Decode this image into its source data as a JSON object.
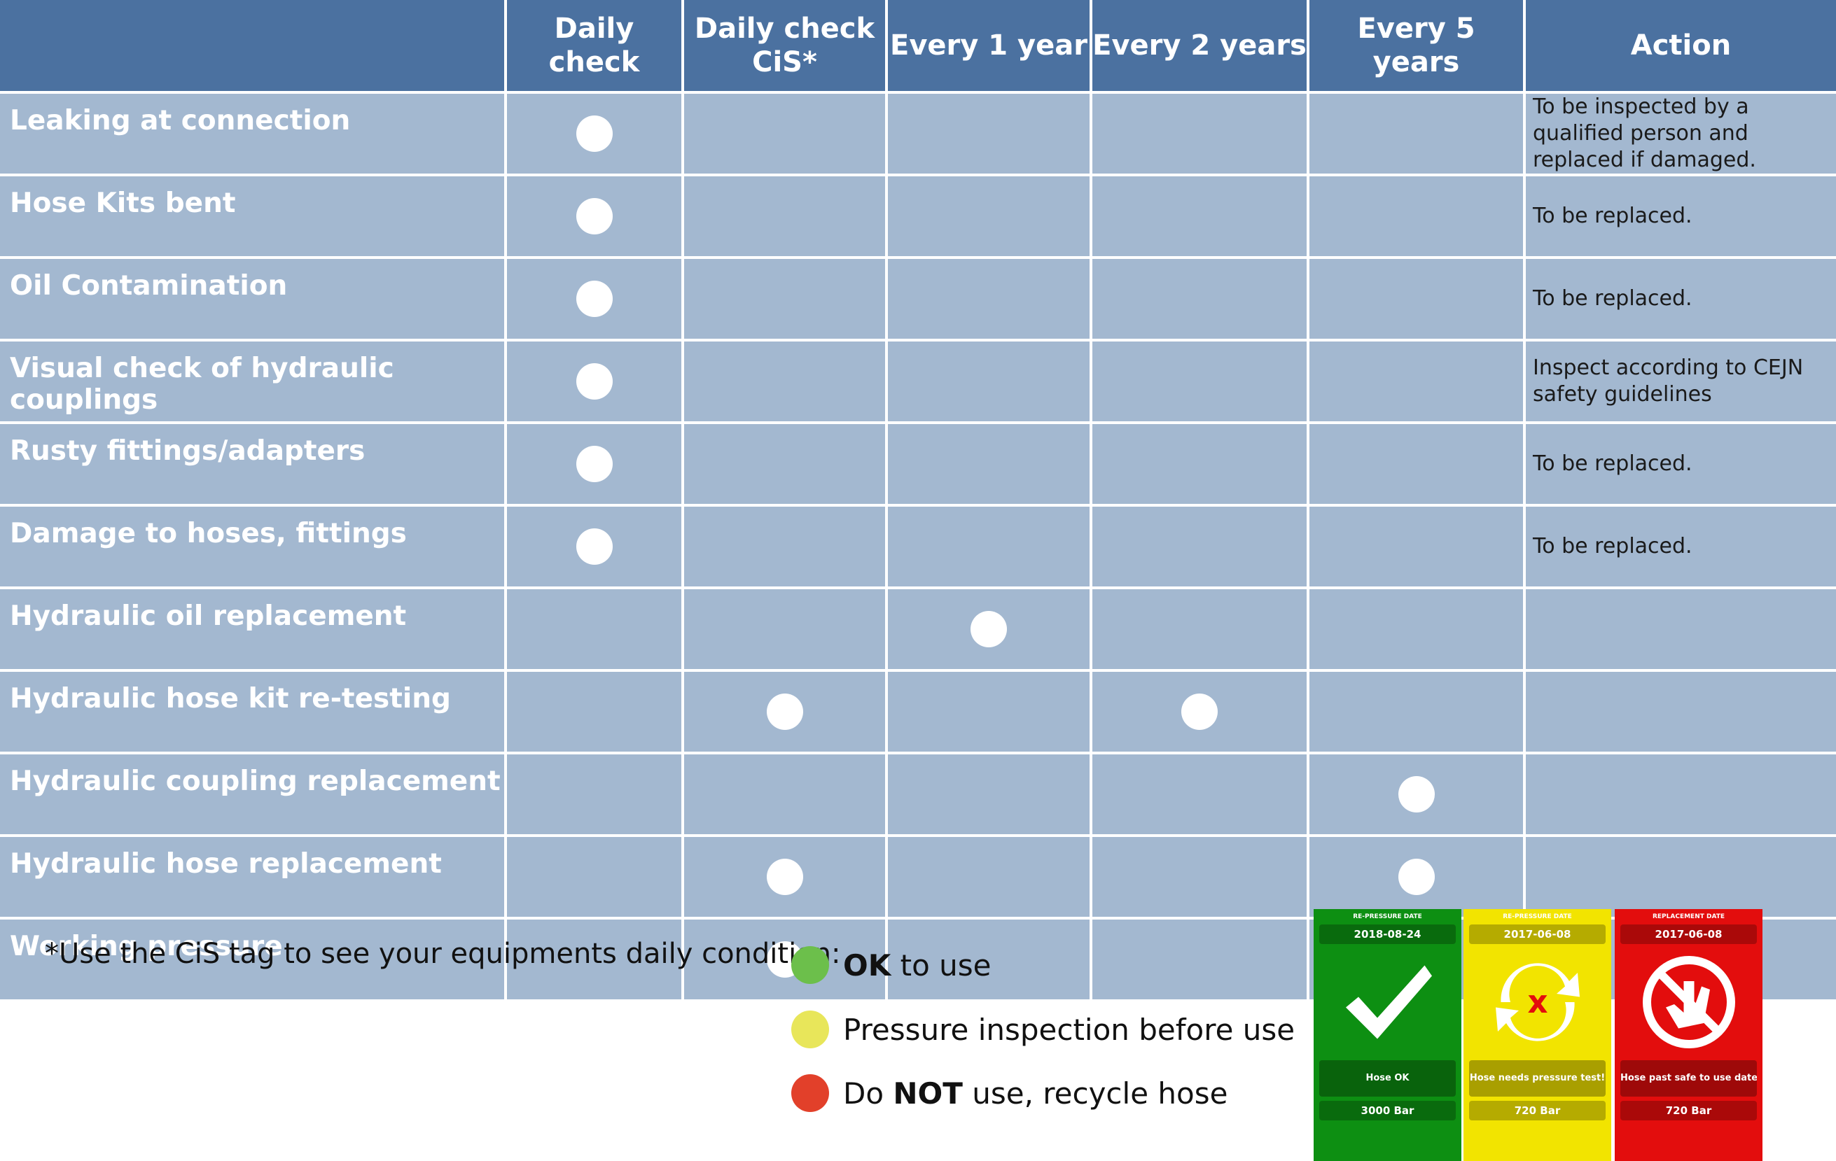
{
  "table": {
    "headers": [
      "Daily check",
      "Daily check CiS*",
      "Every 1 year",
      "Every 2 years",
      "Every 5 years",
      "Action"
    ],
    "rows": [
      {
        "label": "Leaking at connection",
        "checks": [
          true,
          false,
          false,
          false,
          false
        ],
        "action": "To be inspected by a qualified person and replaced if damaged."
      },
      {
        "label": "Hose Kits bent",
        "checks": [
          true,
          false,
          false,
          false,
          false
        ],
        "action": "To be replaced."
      },
      {
        "label": "Oil Contamination",
        "checks": [
          true,
          false,
          false,
          false,
          false
        ],
        "action": "To be replaced."
      },
      {
        "label": "Visual check of hydraulic couplings",
        "checks": [
          true,
          false,
          false,
          false,
          false
        ],
        "action": "Inspect according to CEJN safety guidelines"
      },
      {
        "label": "Rusty fittings/adapters",
        "checks": [
          true,
          false,
          false,
          false,
          false
        ],
        "action": "To be replaced."
      },
      {
        "label": "Damage to hoses, fittings",
        "checks": [
          true,
          false,
          false,
          false,
          false
        ],
        "action": "To be replaced."
      },
      {
        "label": "Hydraulic oil replacement",
        "checks": [
          false,
          false,
          true,
          false,
          false
        ]
      },
      {
        "label": "Hydraulic hose kit re-testing",
        "checks": [
          false,
          true,
          false,
          true,
          false
        ]
      },
      {
        "label": "Hydraulic coupling replacement",
        "checks": [
          false,
          false,
          false,
          false,
          true
        ]
      },
      {
        "label": "Hydraulic hose replacement",
        "checks": [
          false,
          true,
          false,
          false,
          true
        ]
      },
      {
        "label": "Working pressure",
        "checks": [
          false,
          true,
          false,
          false,
          false
        ]
      }
    ]
  },
  "footnote": "*Use the CiS tag to see your equipments daily condition:",
  "legend": [
    {
      "color": "#6cbf4b",
      "parts": [
        {
          "text": "OK",
          "bold": true
        },
        {
          "text": " to use"
        }
      ]
    },
    {
      "color": "#e8e65a",
      "parts": [
        {
          "text": "Pressure inspection before use"
        }
      ]
    },
    {
      "color": "#e2402a",
      "parts": [
        {
          "text": "Do "
        },
        {
          "text": "NOT",
          "bold": true
        },
        {
          "text": " use, recycle hose"
        }
      ]
    }
  ],
  "tags": [
    {
      "color": "#0d8f12",
      "date_label": "RE-PRESSURE DATE",
      "date": "2018-08-24",
      "status": "Hose OK",
      "pressure": "3000 Bar"
    },
    {
      "color": "#f2e400",
      "date_label": "RE-PRESSURE DATE",
      "date": "2017-06-08",
      "status": "Hose needs pressure test!",
      "pressure": "720 Bar"
    },
    {
      "color": "#e30d0d",
      "date_label": "REPLACEMENT DATE",
      "date": "2017-06-08",
      "status": "Hose past safe to use date!",
      "pressure": "720 Bar"
    }
  ]
}
